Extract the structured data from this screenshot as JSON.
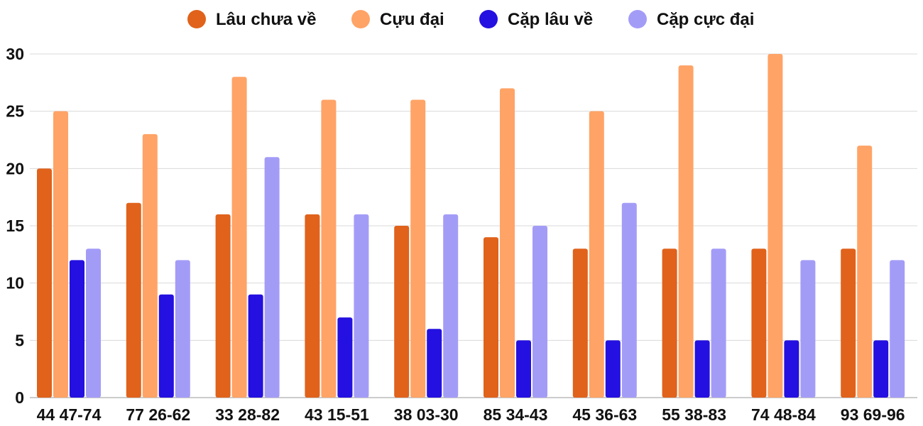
{
  "chart_data": {
    "type": "bar",
    "title": "",
    "xlabel": "",
    "ylabel": "",
    "ylim": [
      0,
      30
    ],
    "yticks": [
      0,
      5,
      10,
      15,
      20,
      25,
      30
    ],
    "grid": true,
    "legend_position": "top",
    "categories": [
      "44 47-74",
      "77 26-62",
      "33 28-82",
      "43 15-51",
      "38 03-30",
      "85 34-43",
      "45 36-63",
      "55 38-83",
      "74 48-84",
      "93 69-96"
    ],
    "series": [
      {
        "name": "Lâu chưa về",
        "color": "#e0621b",
        "values": [
          20,
          17,
          16,
          16,
          15,
          14,
          13,
          13,
          13,
          13
        ]
      },
      {
        "name": "Cựu đại",
        "color": "#ffa366",
        "values": [
          25,
          23,
          28,
          26,
          26,
          27,
          25,
          29,
          30,
          22
        ]
      },
      {
        "name": "Cặp lâu về",
        "color": "#2410e0",
        "values": [
          12,
          9,
          9,
          7,
          6,
          5,
          5,
          5,
          5,
          5
        ]
      },
      {
        "name": "Cặp cực đại",
        "color": "#a39cf7",
        "values": [
          13,
          12,
          21,
          16,
          16,
          15,
          17,
          13,
          12,
          12
        ]
      }
    ]
  }
}
